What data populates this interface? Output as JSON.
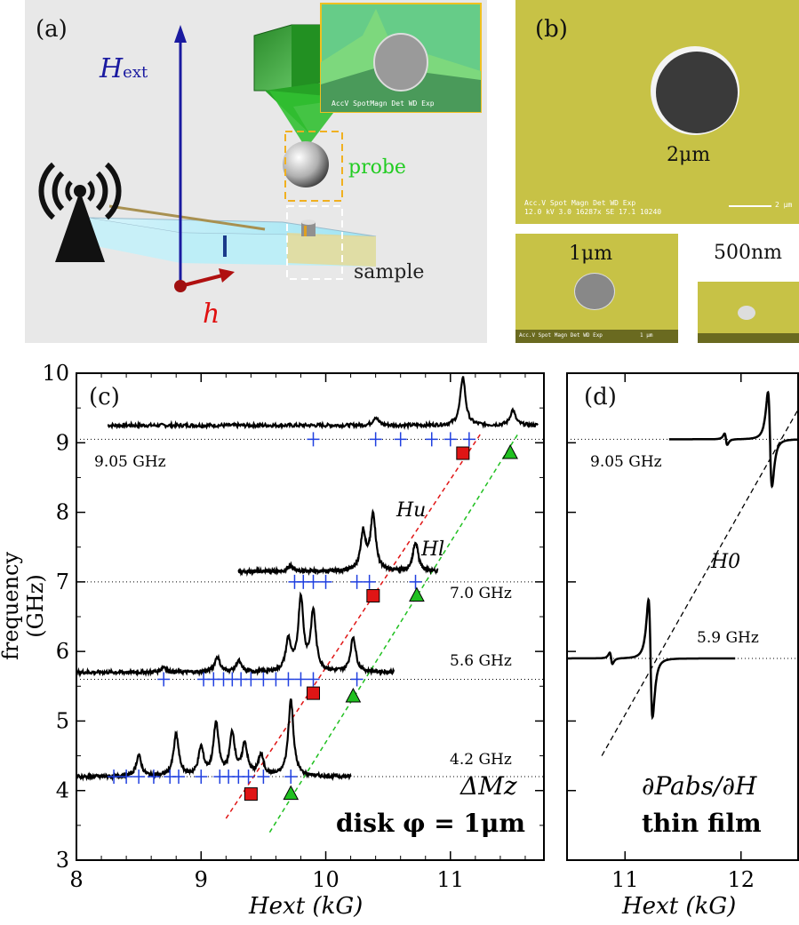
{
  "panel_a": {
    "label": "(a)",
    "hext_label": "H",
    "hext_sub": "ext",
    "h_label": "h",
    "probe_label": "probe",
    "sample_label": "sample",
    "inset_caption_line1": "AccV  SpotMagn  Det  WD  Exp",
    "colors": {
      "field": "#1a1aa0",
      "rf": "#e01010",
      "probe": "#22cc22",
      "bar": "#8fe0f0",
      "inset_border": "#f0c020"
    },
    "icons": [
      "antenna-icon",
      "cantilever-icon",
      "probe-sphere-icon",
      "sample-disk-icon"
    ]
  },
  "panel_b": {
    "label": "(b)",
    "size_2um": "2μm",
    "size_1um": "1μm",
    "size_500nm": "500nm",
    "scale_bar_2um": "2 μm",
    "caption_line1": "Acc.V  Spot Magn   Det  WD  Exp",
    "caption_line2": "12.0 kV 3.0  16287x  SE  17.1  10240",
    "caption_small": "Acc.V Spot Magn Det WD Exp",
    "scale_bar_1um": "1 μm"
  },
  "chart_data": [
    {
      "type": "line",
      "panel_label": "(c)",
      "xlabel": "Hext (kG)",
      "ylabel": "frequency (GHz)",
      "xlim": [
        8,
        11.75
      ],
      "ylim": [
        3,
        10
      ],
      "xticks": [
        8,
        9,
        10,
        11
      ],
      "yticks": [
        3,
        4,
        5,
        6,
        7,
        8,
        9,
        10
      ],
      "annotation_main": "ΔMz",
      "annotation_sample": "disk φ = 1μm",
      "line_labels": {
        "upper": "Hu",
        "lower": "Hl"
      },
      "reference_lines": [
        {
          "freq": 9.05,
          "label": "9.05 GHz"
        },
        {
          "freq": 7.0,
          "label": "7.0 GHz"
        },
        {
          "freq": 5.6,
          "label": "5.6 GHz"
        },
        {
          "freq": 4.2,
          "label": "4.2 GHz"
        }
      ],
      "spectra": [
        {
          "freq": 9.05,
          "baseline": 9.25,
          "x_range": [
            8.25,
            11.7
          ],
          "peaks": [
            [
              10.4,
              0.12
            ],
            [
              11.1,
              0.7
            ],
            [
              11.5,
              0.22
            ]
          ]
        },
        {
          "freq": 7.0,
          "baseline": 7.15,
          "x_range": [
            9.3,
            10.9
          ],
          "peaks": [
            [
              9.72,
              0.08
            ],
            [
              10.3,
              0.55
            ],
            [
              10.38,
              0.8
            ],
            [
              10.72,
              0.42
            ]
          ]
        },
        {
          "freq": 5.6,
          "baseline": 5.7,
          "x_range": [
            8.0,
            10.55
          ],
          "peaks": [
            [
              8.7,
              0.08
            ],
            [
              9.13,
              0.22
            ],
            [
              9.3,
              0.16
            ],
            [
              9.7,
              0.45
            ],
            [
              9.8,
              1.05
            ],
            [
              9.9,
              0.85
            ],
            [
              10.22,
              0.5
            ]
          ]
        },
        {
          "freq": 4.2,
          "baseline": 4.2,
          "x_range": [
            8.0,
            10.2
          ],
          "peaks": [
            [
              8.5,
              0.3
            ],
            [
              8.8,
              0.6
            ],
            [
              9.0,
              0.4
            ],
            [
              9.12,
              0.75
            ],
            [
              9.25,
              0.6
            ],
            [
              9.35,
              0.45
            ],
            [
              9.48,
              0.3
            ],
            [
              9.72,
              1.1
            ]
          ]
        }
      ],
      "crosses": [
        {
          "freq": 9.05,
          "x": [
            9.9,
            10.4,
            10.6,
            10.85,
            11.0,
            11.15
          ]
        },
        {
          "freq": 7.0,
          "x": [
            9.75,
            9.82,
            9.9,
            10.0,
            10.25,
            10.35,
            10.72
          ]
        },
        {
          "freq": 5.6,
          "x": [
            8.7,
            9.02,
            9.1,
            9.18,
            9.25,
            9.32,
            9.4,
            9.5,
            9.6,
            9.7,
            9.8,
            9.9,
            10.25
          ]
        },
        {
          "freq": 4.2,
          "x": [
            8.3,
            8.4,
            8.5,
            8.62,
            8.75,
            8.82,
            9.0,
            9.15,
            9.22,
            9.3,
            9.38,
            9.5,
            9.72
          ]
        }
      ],
      "squares": [
        [
          9.4,
          3.95
        ],
        [
          9.9,
          5.4
        ],
        [
          10.38,
          6.8
        ],
        [
          11.1,
          8.85
        ]
      ],
      "triangles": [
        [
          9.72,
          3.95
        ],
        [
          10.22,
          5.35
        ],
        [
          10.73,
          6.8
        ],
        [
          11.48,
          8.85
        ]
      ],
      "upper_line": [
        [
          9.2,
          3.6
        ],
        [
          11.25,
          9.15
        ]
      ],
      "lower_line": [
        [
          9.55,
          3.4
        ],
        [
          11.55,
          9.15
        ]
      ],
      "colors": {
        "trace": "#000000",
        "cross": "#2040e0",
        "square": "#e01515",
        "triangle": "#20c020",
        "upper": "#e01515",
        "lower": "#20c020"
      }
    },
    {
      "type": "line",
      "panel_label": "(d)",
      "xlabel": "Hext (kG)",
      "xlim": [
        10.5,
        12.5
      ],
      "ylim": [
        3,
        10
      ],
      "xticks": [
        11,
        12
      ],
      "annotation_main": "∂Pabs/∂H",
      "annotation_sample": "thin film",
      "line_label": "H0",
      "reference_lines": [
        {
          "freq": 9.05,
          "label": "9.05 GHz"
        },
        {
          "freq": 5.9,
          "label": "5.9 GHz"
        }
      ],
      "spectra": [
        {
          "freq": 9.05,
          "baseline": 9.05,
          "x_range": [
            11.38,
            12.5
          ],
          "center": 12.25,
          "small": 11.87
        },
        {
          "freq": 5.9,
          "baseline": 5.9,
          "x_range": [
            10.5,
            11.95
          ],
          "center": 11.22,
          "small": 10.88
        }
      ],
      "h0_line": [
        [
          10.8,
          4.5
        ],
        [
          12.5,
          9.5
        ]
      ]
    }
  ]
}
